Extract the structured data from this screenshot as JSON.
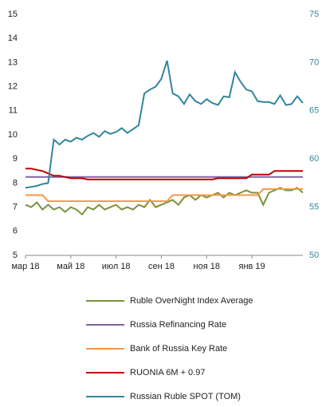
{
  "chart_data": {
    "type": "line",
    "categories": [
      "мар 18",
      null,
      null,
      null,
      null,
      null,
      null,
      null,
      "май 18",
      null,
      null,
      null,
      null,
      null,
      null,
      null,
      "июл 18",
      null,
      null,
      null,
      null,
      null,
      null,
      null,
      "сен 18",
      null,
      null,
      null,
      null,
      null,
      null,
      null,
      "ноя 18",
      null,
      null,
      null,
      null,
      null,
      null,
      null,
      "янв 19",
      null,
      null,
      null,
      null,
      null,
      null,
      null,
      null,
      null
    ],
    "ylim": [
      5,
      15
    ],
    "yticks": [
      5,
      6,
      7,
      8,
      9,
      10,
      11,
      12,
      13,
      14,
      15
    ],
    "y2lim": [
      50,
      75
    ],
    "y2ticks": [
      50,
      55,
      60,
      65,
      70,
      75
    ],
    "series": [
      {
        "name": "Ruble OverNight Index Average",
        "color": "#77933c",
        "values": [
          7.1,
          7.0,
          7.2,
          6.9,
          7.1,
          6.9,
          7.0,
          6.8,
          7.0,
          6.9,
          6.7,
          7.0,
          6.9,
          7.1,
          6.9,
          7.0,
          7.1,
          6.9,
          7.0,
          6.9,
          7.1,
          7.0,
          7.3,
          7.0,
          7.1,
          7.2,
          7.3,
          7.1,
          7.4,
          7.5,
          7.3,
          7.5,
          7.4,
          7.5,
          7.6,
          7.4,
          7.6,
          7.5,
          7.6,
          7.7,
          7.6,
          7.6,
          7.1,
          7.6,
          7.7,
          7.8,
          7.7,
          7.7,
          7.8,
          7.6
        ]
      },
      {
        "name": "Russia Refinancing Rate",
        "color": "#8064a2",
        "values": [
          8.25,
          8.25,
          8.25,
          8.25,
          8.25,
          8.25,
          8.25,
          8.25,
          8.25,
          8.25,
          8.25,
          8.25,
          8.25,
          8.25,
          8.25,
          8.25,
          8.25,
          8.25,
          8.25,
          8.25,
          8.25,
          8.25,
          8.25,
          8.25,
          8.25,
          8.25,
          8.25,
          8.25,
          8.25,
          8.25,
          8.25,
          8.25,
          8.25,
          8.25,
          8.25,
          8.25,
          8.25,
          8.25,
          8.25,
          8.25,
          8.25,
          8.25,
          8.25,
          8.25,
          8.25,
          8.25,
          8.25,
          8.25,
          8.25,
          8.25
        ]
      },
      {
        "name": "Bank of Russia Key Rate",
        "color": "#f79646",
        "values": [
          7.5,
          7.5,
          7.5,
          7.5,
          7.25,
          7.25,
          7.25,
          7.25,
          7.25,
          7.25,
          7.25,
          7.25,
          7.25,
          7.25,
          7.25,
          7.25,
          7.25,
          7.25,
          7.25,
          7.25,
          7.25,
          7.25,
          7.25,
          7.25,
          7.25,
          7.25,
          7.5,
          7.5,
          7.5,
          7.5,
          7.5,
          7.5,
          7.5,
          7.5,
          7.5,
          7.5,
          7.5,
          7.5,
          7.5,
          7.5,
          7.5,
          7.5,
          7.75,
          7.75,
          7.75,
          7.75,
          7.75,
          7.75,
          7.75,
          7.75
        ]
      },
      {
        "name": "RUONIA 6M + 0.97",
        "color": "#c00000",
        "values": [
          8.6,
          8.6,
          8.55,
          8.5,
          8.4,
          8.3,
          8.3,
          8.25,
          8.2,
          8.2,
          8.2,
          8.15,
          8.15,
          8.15,
          8.15,
          8.15,
          8.15,
          8.15,
          8.15,
          8.15,
          8.15,
          8.15,
          8.15,
          8.15,
          8.15,
          8.15,
          8.15,
          8.15,
          8.15,
          8.15,
          8.15,
          8.15,
          8.15,
          8.15,
          8.2,
          8.2,
          8.2,
          8.2,
          8.2,
          8.2,
          8.35,
          8.35,
          8.35,
          8.35,
          8.5,
          8.5,
          8.5,
          8.5,
          8.5,
          8.5
        ]
      },
      {
        "name": "Russian Ruble SPOT (TOM)",
        "color": "#31859c",
        "axis": "y2",
        "values": [
          57.0,
          57.1,
          57.2,
          57.4,
          57.5,
          62.0,
          61.5,
          62.0,
          61.8,
          62.2,
          62.0,
          62.4,
          62.7,
          62.3,
          62.9,
          62.6,
          62.8,
          63.2,
          62.7,
          63.1,
          63.5,
          66.8,
          67.2,
          67.5,
          68.3,
          70.2,
          66.8,
          66.5,
          65.7,
          66.7,
          66.0,
          65.7,
          66.2,
          65.8,
          65.6,
          66.5,
          66.4,
          69.0,
          68.0,
          67.2,
          67.0,
          66.0,
          65.9,
          65.9,
          65.7,
          66.6,
          65.6,
          65.7,
          66.5,
          65.8
        ]
      }
    ]
  }
}
